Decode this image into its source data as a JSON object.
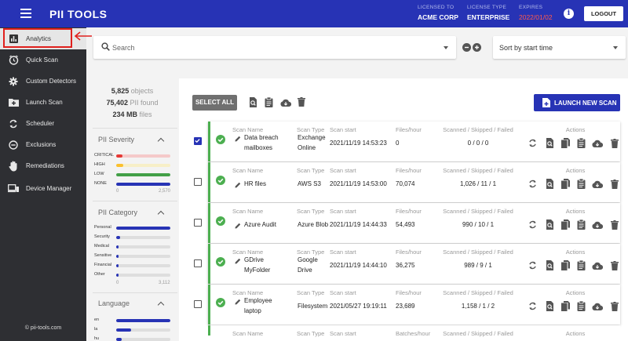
{
  "header": {
    "brand": "PII TOOLS",
    "licensed_to_label": "LICENSED TO",
    "licensed_to": "ACME CORP",
    "license_type_label": "LICENSE TYPE",
    "license_type": "ENTERPRISE",
    "expires_label": "EXPIRES",
    "expires": "2022/01/02",
    "logout_label": "LOGOUT"
  },
  "sidebar": {
    "items": [
      {
        "label": "Analytics",
        "icon": "bar-chart-icon"
      },
      {
        "label": "Quick Scan",
        "icon": "timer-icon"
      },
      {
        "label": "Custom Detectors",
        "icon": "gear-icon"
      },
      {
        "label": "Launch Scan",
        "icon": "add-folder-icon"
      },
      {
        "label": "Scheduler",
        "icon": "sync-icon"
      },
      {
        "label": "Exclusions",
        "icon": "minus-circle-icon"
      },
      {
        "label": "Remediations",
        "icon": "hand-icon"
      },
      {
        "label": "Device Manager",
        "icon": "devices-icon"
      }
    ],
    "copyright": "© pii-tools.com"
  },
  "search": {
    "placeholder": "Search",
    "value": ""
  },
  "sort": {
    "selected": "Sort by start time"
  },
  "stats": {
    "objects_value": "5,825",
    "objects_label": "objects",
    "pii_value": "75,402",
    "pii_label": "PII found",
    "size_value": "234 MB",
    "size_label": "files"
  },
  "severity": {
    "title": "PII Severity",
    "axis_min": "0",
    "axis_max": "2,570",
    "items": [
      {
        "label": "CRITICAL",
        "fraction": 0.12,
        "color": "#e53935",
        "track": "#f5c9c9"
      },
      {
        "label": "HIGH",
        "fraction": 0.13,
        "color": "#fbc02d",
        "track": "#f7efc7"
      },
      {
        "label": "LOW",
        "fraction": 1.0,
        "color": "#43a047",
        "track": "#dedede"
      },
      {
        "label": "NONE",
        "fraction": 1.0,
        "color": "#2733b5",
        "track": "#dedede"
      }
    ]
  },
  "category": {
    "title": "PII Category",
    "axis_min": "0",
    "axis_max": "3,112",
    "items": [
      {
        "label": "Personal",
        "fraction": 1.0
      },
      {
        "label": "Security",
        "fraction": 0.07
      },
      {
        "label": "Medical",
        "fraction": 0.03
      },
      {
        "label": "Sensitive",
        "fraction": 0.02
      },
      {
        "label": "Financial",
        "fraction": 0.02
      },
      {
        "label": "Other",
        "fraction": 0.01
      }
    ]
  },
  "language": {
    "title": "Language",
    "items": [
      {
        "label": "en",
        "fraction": 1.0
      },
      {
        "label": "la",
        "fraction": 0.28
      },
      {
        "label": "hu",
        "fraction": 0.1
      }
    ]
  },
  "toolbar": {
    "select_all": "SELECT ALL",
    "launch_label": "LAUNCH NEW SCAN"
  },
  "columns": {
    "scan_name": "Scan Name",
    "scan_type": "Scan Type",
    "scan_start": "Scan start",
    "rate": "Files/hour",
    "rate_alt": "Batches/hour",
    "counts": "Scanned / Skipped / Failed",
    "actions": "Actions"
  },
  "scans": [
    {
      "name": [
        "Data breach",
        "mailboxes"
      ],
      "type": [
        "Exchange",
        "Online"
      ],
      "start": "2021/11/19 14:53:23",
      "rate": "0",
      "counts": "0 / 0 / 0",
      "checked": true
    },
    {
      "name": [
        "HR files"
      ],
      "type": [
        "AWS S3"
      ],
      "start": "2021/11/19 14:53:00",
      "rate": "70,074",
      "counts": "1,026 / 11 / 1",
      "checked": false
    },
    {
      "name": [
        "Azure Audit"
      ],
      "type": [
        "Azure Blob"
      ],
      "start": "2021/11/19 14:44:33",
      "rate": "54,493",
      "counts": "990 / 10 / 1",
      "checked": false
    },
    {
      "name": [
        "GDrive",
        "MyFolder"
      ],
      "type": [
        "Google",
        "Drive"
      ],
      "start": "2021/11/19 14:44:10",
      "rate": "36,275",
      "counts": "989 / 9 / 1",
      "checked": false
    },
    {
      "name": [
        "Employee",
        "laptop"
      ],
      "type": [
        "Filesystem"
      ],
      "start": "2021/05/27 19:19:11",
      "rate": "23,689",
      "counts": "1,158 / 1 / 2",
      "checked": false
    }
  ],
  "colors": {
    "brand": "#2733b5",
    "success": "#4caf50",
    "expires": "#ff5a4d"
  }
}
